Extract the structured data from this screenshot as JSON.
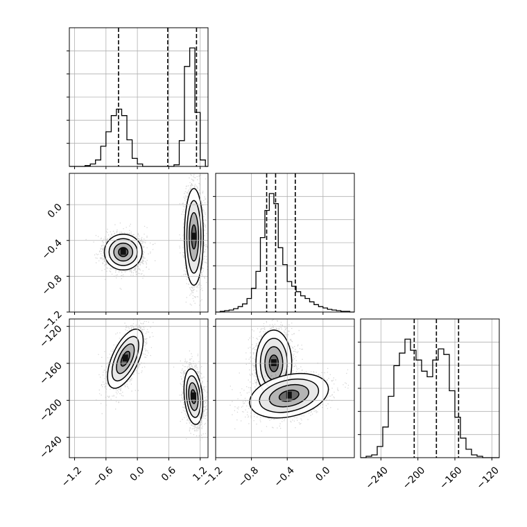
{
  "chart_data": {
    "type": "corner",
    "title": "",
    "parameters": [
      {
        "name": "",
        "range": [
          -1.3,
          1.35
        ],
        "ticks": [
          -1.2,
          -0.6,
          0.0,
          0.6,
          1.2
        ],
        "tick_labels": [
          "−1.2",
          "−0.6",
          "0.0",
          "0.6",
          "1.2"
        ]
      },
      {
        "name": "",
        "range": [
          -1.2,
          0.35
        ],
        "ticks": [
          -1.2,
          -0.8,
          -0.4,
          0.0
        ],
        "tick_labels": [
          "−1.2",
          "−0.8",
          "−0.4",
          "0.0"
        ]
      },
      {
        "name": "",
        "range": [
          -262,
          -112
        ],
        "ticks": [
          -240,
          -200,
          -160,
          -120
        ],
        "tick_labels": [
          "−240",
          "−200",
          "−160",
          "−120"
        ]
      }
    ],
    "quantiles": [
      [
        -0.36,
        0.58,
        1.13
      ],
      [
        -0.63,
        -0.53,
        -0.31
      ],
      [
        -204,
        -180,
        -156
      ]
    ],
    "histograms": [
      {
        "edges": [
          -1.3,
          -1.2,
          -1.1,
          -1.0,
          -0.9,
          -0.8,
          -0.7,
          -0.6,
          -0.5,
          -0.4,
          -0.3,
          -0.2,
          -0.1,
          0.0,
          0.1,
          0.2,
          0.3,
          0.4,
          0.5,
          0.6,
          0.7,
          0.8,
          0.9,
          1.0,
          1.1,
          1.2,
          1.3,
          1.35
        ],
        "counts": [
          0,
          0,
          0,
          1,
          3,
          8,
          25,
          43,
          63,
          71,
          63,
          33,
          10,
          3,
          0,
          0,
          0,
          0,
          0,
          0,
          2,
          32,
          124,
          147,
          67,
          8,
          0
        ]
      },
      {
        "edges": [
          -1.2,
          -1.15,
          -1.1,
          -1.05,
          -1.0,
          -0.95,
          -0.9,
          -0.85,
          -0.8,
          -0.75,
          -0.7,
          -0.65,
          -0.6,
          -0.55,
          -0.5,
          -0.45,
          -0.4,
          -0.35,
          -0.3,
          -0.25,
          -0.2,
          -0.15,
          -0.1,
          -0.05,
          0.0,
          0.05,
          0.1,
          0.15,
          0.2,
          0.25,
          0.3,
          0.35
        ],
        "counts": [
          0,
          1,
          2,
          3,
          5,
          8,
          12,
          20,
          35,
          60,
          110,
          150,
          175,
          160,
          95,
          70,
          45,
          38,
          30,
          24,
          20,
          15,
          11,
          8,
          6,
          4,
          3,
          2,
          1,
          1,
          0
        ]
      },
      {
        "edges": [
          -262,
          -256,
          -250,
          -244,
          -238,
          -232,
          -226,
          -220,
          -214,
          -208,
          -202,
          -196,
          -190,
          -184,
          -178,
          -172,
          -166,
          -160,
          -154,
          -148,
          -142,
          -136,
          -130,
          -124,
          -118,
          -112
        ],
        "counts": [
          0,
          1,
          2,
          8,
          22,
          44,
          66,
          75,
          85,
          77,
          70,
          62,
          58,
          70,
          78,
          74,
          48,
          29,
          14,
          6,
          2,
          1,
          0,
          0,
          0
        ]
      }
    ],
    "density_2d": [
      {
        "x_param": 0,
        "y_param": 1,
        "clusters": [
          {
            "cx": -0.27,
            "cy": -0.53,
            "sx": 0.18,
            "sy": 0.1,
            "rho": 0.0,
            "n": 2200
          },
          {
            "cx": 1.08,
            "cy": -0.36,
            "sx": 0.09,
            "sy": 0.27,
            "rho": 0.0,
            "n": 2400
          }
        ]
      },
      {
        "x_param": 0,
        "y_param": 2,
        "clusters": [
          {
            "cx": -0.23,
            "cy": -155,
            "sx": 0.17,
            "sy": 16,
            "rho": 0.6,
            "n": 2200
          },
          {
            "cx": 1.07,
            "cy": -196,
            "sx": 0.09,
            "sy": 15,
            "rho": -0.25,
            "n": 2400
          }
        ]
      },
      {
        "x_param": 1,
        "y_param": 2,
        "clusters": [
          {
            "cx": -0.55,
            "cy": -160,
            "sx": 0.1,
            "sy": 18,
            "rho": 0.0,
            "n": 2600
          },
          {
            "cx": -0.38,
            "cy": -195,
            "sx": 0.22,
            "sy": 12,
            "rho": 0.3,
            "n": 2000
          }
        ]
      }
    ]
  }
}
